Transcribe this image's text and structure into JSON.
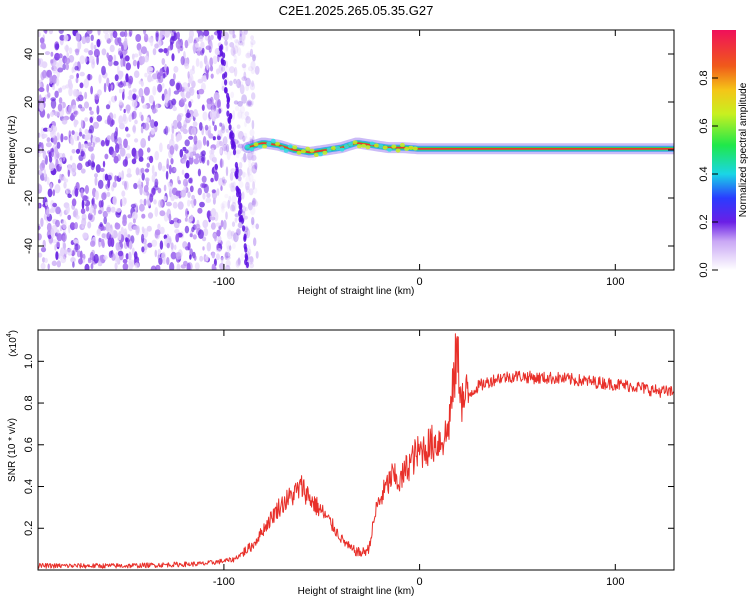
{
  "figure": {
    "title": "C2E1.2025.265.05.35.G27"
  },
  "chart_data": [
    {
      "type": "heatmap",
      "name": "spectrogram",
      "xlabel": "Height of straight line (km)",
      "ylabel": "Frequency (Hz)",
      "xlim": [
        -195,
        130
      ],
      "ylim": [
        -50,
        50
      ],
      "x_ticks": [
        -100,
        0,
        100
      ],
      "x_tick_labels": [
        "-100",
        "0",
        "100"
      ],
      "y_ticks": [
        -40,
        -20,
        0,
        20,
        40
      ],
      "y_tick_labels": [
        "-40",
        "-20",
        "0",
        "20",
        "40"
      ],
      "noise_region_km": [
        -195,
        -88
      ],
      "tone_track": {
        "x": [
          -88,
          -80,
          -72,
          -64,
          -56,
          -48,
          -40,
          -32,
          -24,
          -16,
          -8,
          0,
          20,
          60,
          130
        ],
        "y": [
          1,
          3,
          2,
          0,
          -1,
          0,
          1,
          3,
          2,
          1,
          1,
          0.5,
          0.5,
          0.5,
          0.5
        ]
      },
      "colorbar": {
        "label": "Normalized spectral amplitude",
        "range": [
          0,
          1
        ],
        "ticks": [
          0.0,
          0.2,
          0.4,
          0.6,
          0.8
        ],
        "tick_labels": [
          "0.0",
          "0.2",
          "0.4",
          "0.6",
          "0.8"
        ]
      }
    },
    {
      "type": "line",
      "name": "snr",
      "xlabel": "Height of straight line (km)",
      "ylabel": "SNR (10 * v/v)",
      "scale_label": "(x10",
      "scale_exponent": "4",
      "scale_close": ")",
      "xlim": [
        -195,
        130
      ],
      "ylim": [
        0,
        1.15
      ],
      "x_ticks": [
        -100,
        0,
        100
      ],
      "x_tick_labels": [
        "-100",
        "0",
        "100"
      ],
      "y_ticks": [
        0.2,
        0.4,
        0.6,
        0.8,
        1.0
      ],
      "y_tick_labels": [
        "0.2",
        "0.4",
        "0.6",
        "0.8",
        "1.0"
      ],
      "series": [
        {
          "name": "SNR",
          "color": "#e8302a",
          "x": [
            -195,
            -150,
            -110,
            -95,
            -85,
            -78,
            -72,
            -66,
            -60,
            -55,
            -50,
            -45,
            -40,
            -35,
            -30,
            -26,
            -22,
            -18,
            -14,
            -10,
            -6,
            -2,
            2,
            6,
            10,
            14,
            17,
            19,
            22,
            26,
            30,
            35,
            40,
            50,
            60,
            70,
            80,
            90,
            100,
            110,
            120,
            130
          ],
          "y": [
            0.02,
            0.02,
            0.03,
            0.05,
            0.12,
            0.22,
            0.3,
            0.35,
            0.4,
            0.33,
            0.28,
            0.22,
            0.15,
            0.1,
            0.08,
            0.1,
            0.3,
            0.38,
            0.45,
            0.42,
            0.5,
            0.55,
            0.58,
            0.6,
            0.62,
            0.65,
            0.85,
            1.05,
            0.8,
            0.85,
            0.88,
            0.9,
            0.92,
            0.93,
            0.92,
            0.92,
            0.91,
            0.9,
            0.89,
            0.88,
            0.86,
            0.85
          ]
        }
      ]
    }
  ]
}
